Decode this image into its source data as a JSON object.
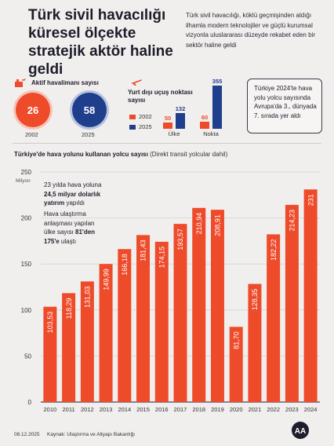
{
  "header": {
    "title": "Türk sivil havacılığı küresel ölçekte stratejik aktör haline geldi",
    "intro": "Türk sivil havacılığı, köklü geçmişinden aldığı ilhamla modern teknolojiler ve güçlü kurumsal vizyonla uluslararası düzeyde rekabet eden bir sektör haline geldi"
  },
  "airports": {
    "label": "Aktif havalimanı sayısı",
    "items": [
      {
        "year": "2002",
        "value": "26"
      },
      {
        "year": "2025",
        "value": "58"
      }
    ]
  },
  "intl": {
    "title": "Yurt dışı uçuş noktası sayısı",
    "legend": [
      "2002",
      "2025"
    ],
    "categories": [
      "Ülke",
      "Nokta"
    ],
    "values_2002": [
      50,
      60
    ],
    "values_2025": [
      132,
      355
    ],
    "labels_2002": [
      "50",
      "60"
    ],
    "labels_2025": [
      "132",
      "355"
    ]
  },
  "rank": {
    "text": "Türkiye 2024'te hava yolu yolcu sayısında Avrupa'da 3., dünyada 7. sırada yer aldı"
  },
  "notes": {
    "n1_a": "23 yılda hava yoluna",
    "n1_b": "24,5 milyar dolarlık",
    "n1_c": "yatırım",
    "n1_d": " yapıldı",
    "n2_a": "Hava ulaştırma anlaşması yapılan ülke sayısı ",
    "n2_b": "81'den 175'e",
    "n2_c": " ulaştı"
  },
  "chart_data": {
    "type": "bar",
    "title": "Türkiye'de hava yolunu kullanan yolcu sayısı",
    "subtitle": "(Direkt transit yolcular dahil)",
    "ylabel": "Milyon",
    "ylim": [
      0,
      250
    ],
    "yticks": [
      "0",
      "50",
      "100",
      "150",
      "200",
      "250"
    ],
    "categories": [
      "2010",
      "2011",
      "2012",
      "2013",
      "2014",
      "2015",
      "2016",
      "2017",
      "2018",
      "2019",
      "2020",
      "2021",
      "2022",
      "2023",
      "2024"
    ],
    "values": [
      103.53,
      118.29,
      131.03,
      149.99,
      166.18,
      181.43,
      174.15,
      193.57,
      210.94,
      208.91,
      81.7,
      128.35,
      182.22,
      214.23,
      231
    ],
    "labels": [
      "103,53",
      "118,29",
      "131,03",
      "149,99",
      "166,18",
      "181,43",
      "174,15",
      "193,57",
      "210,94",
      "208,91",
      "81,70",
      "128,35",
      "182,22",
      "214,23",
      "231"
    ],
    "bar_color": "#ee4b2b",
    "grid": true
  },
  "footer": {
    "date": "08.12.2025",
    "source": "Kaynak: Ulaştırma ve Altyapı Bakanlığı",
    "logo": "AA"
  },
  "colors": {
    "accent": "#ee4b2b",
    "navy": "#1f3f8c"
  }
}
